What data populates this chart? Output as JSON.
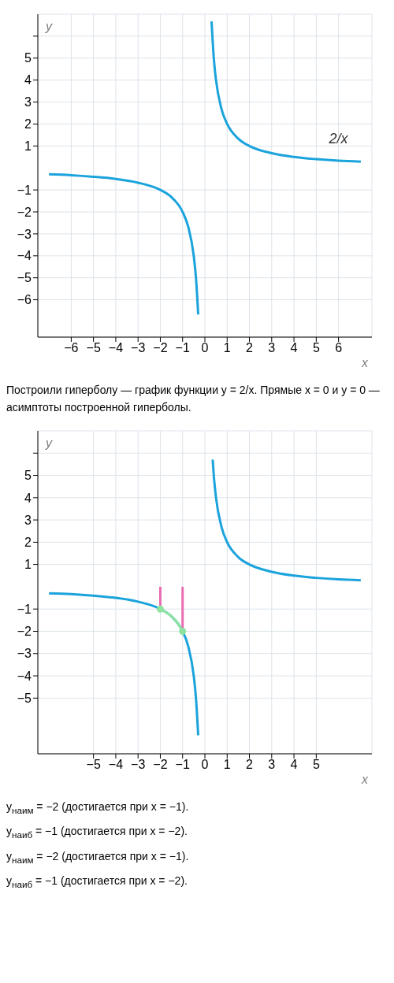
{
  "chart_data": [
    {
      "type": "line",
      "xlabel": "x",
      "ylabel": "y",
      "grid": true,
      "line_style": "solid",
      "marker": "none",
      "xlim": [
        -7.5,
        7.5
      ],
      "ylim": [
        -7.7,
        7
      ],
      "xticks": [
        -6,
        -5,
        -4,
        -3,
        -2,
        -1,
        0,
        1,
        2,
        3,
        4,
        5,
        6
      ],
      "yticks": [
        -6,
        -5,
        -4,
        -3,
        -2,
        -1,
        1,
        2,
        3,
        4,
        5,
        {
          "value": 6,
          "label": null
        }
      ],
      "series": [
        {
          "color": "#1ba3dc",
          "x": [
            -7,
            -6,
            -5,
            -4,
            -3,
            -2,
            -1.5,
            -1,
            -0.75,
            -0.5,
            -0.4,
            -0.3
          ],
          "values": [
            -0.29,
            -0.33,
            -0.4,
            -0.5,
            -0.67,
            -1,
            -1.33,
            -2,
            -2.67,
            -4,
            -5,
            -6.67
          ]
        },
        {
          "name": "2/x",
          "color": "#1ba3dc",
          "x": [
            0.3,
            0.4,
            0.5,
            0.75,
            1,
            1.5,
            2,
            3,
            4,
            5,
            6,
            7
          ],
          "values": [
            6.67,
            5,
            4,
            2.67,
            2,
            1.33,
            1,
            0.67,
            0.5,
            0.4,
            0.33,
            0.29
          ]
        }
      ],
      "annotations": [
        "Построили гиперболу — график функции y = 2/x. Прямые x = 0 и y = 0 — асимптоты построенной гиперболы."
      ]
    },
    {
      "type": "line",
      "xlabel": "x",
      "ylabel": "y",
      "grid": true,
      "line_style": "solid",
      "marker": "none",
      "xlim": [
        -7.5,
        7.5
      ],
      "ylim": [
        -7.5,
        7
      ],
      "xticks": [
        -5,
        -4,
        -3,
        -2,
        -1,
        0,
        1,
        2,
        3,
        4,
        5
      ],
      "yticks": [
        -5,
        -4,
        -3,
        -2,
        -1,
        1,
        2,
        3,
        4,
        5,
        {
          "value": 6,
          "label": null
        }
      ],
      "series": [
        {
          "color": "#1ba3dc",
          "x": [
            -7,
            -6,
            -5,
            -4,
            -3,
            -2,
            -1.5,
            -1,
            -0.75,
            -0.5,
            -0.4,
            -0.3
          ],
          "values": [
            -0.29,
            -0.33,
            -0.4,
            -0.5,
            -0.67,
            -1,
            -1.33,
            -2,
            -2.67,
            -4,
            -5,
            -6.67
          ]
        },
        {
          "color": "#1ba3dc",
          "x": [
            0.35,
            0.4,
            0.5,
            0.75,
            1,
            1.5,
            2,
            3,
            4,
            5,
            6,
            7
          ],
          "values": [
            5.71,
            5,
            4,
            2.67,
            2,
            1.33,
            1,
            0.67,
            0.5,
            0.4,
            0.33,
            0.29
          ]
        },
        {
          "color": "#e86cb4",
          "x": [
            -2,
            -2
          ],
          "values": [
            0,
            -1
          ]
        },
        {
          "color": "#e86cb4",
          "x": [
            -1,
            -1
          ],
          "values": [
            0,
            -2
          ]
        },
        {
          "color": "#8fe3a0",
          "x": [
            -2,
            -1.75,
            -1.5,
            -1.25,
            -1
          ],
          "values": [
            -1,
            -1.14,
            -1.33,
            -1.6,
            -2
          ]
        },
        {
          "type": "scatter",
          "color": "#8fe3a0",
          "marker": "circle",
          "x": [
            -2,
            -1
          ],
          "values": [
            -1,
            -2
          ]
        }
      ],
      "annotations": [
        "y$_{наим}$ = −2 (достигается при x = −1).",
        "y$_{наиб}$ = −1 (достигается при x = −2).",
        "y$_{наим}$ = −2 (достигается при x = −1).",
        "y$_{наиб}$ = −1 (достигается при x = −2)."
      ]
    }
  ]
}
